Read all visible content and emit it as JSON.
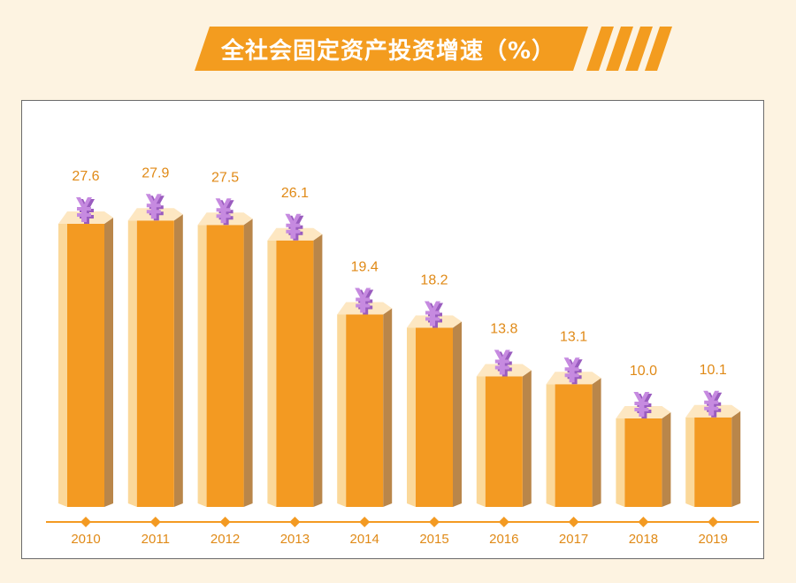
{
  "title": "全社会固定资产投资增速（%）",
  "colors": {
    "background": "#fdf3e1",
    "banner": "#f39c1f",
    "bar_front": "#f39a22",
    "bar_side_light": "#fbd89a",
    "bar_side_dark": "#b9864a",
    "bar_top": "#fde7c2",
    "yuan_icon": "#c68ae0",
    "label": "#e08a17",
    "axis": "#f39a22"
  },
  "chart_data": {
    "type": "bar",
    "title": "全社会固定资产投资增速（%）",
    "categories": [
      "2010",
      "2011",
      "2012",
      "2013",
      "2014",
      "2015",
      "2016",
      "2017",
      "2018",
      "2019"
    ],
    "series": [
      {
        "values": [
          27.6,
          27.9,
          27.5,
          26.1,
          19.4,
          18.2,
          13.8,
          13.1,
          10.0,
          10.1
        ]
      }
    ],
    "value_labels": [
      "27.6",
      "27.9",
      "27.5",
      "26.1",
      "19.4",
      "18.2",
      "13.8",
      "13.1",
      "10.0",
      "10.1"
    ],
    "xlabel": "",
    "ylabel": "",
    "grid": false,
    "legend": "none",
    "marker_icon": "yuan-icon"
  }
}
